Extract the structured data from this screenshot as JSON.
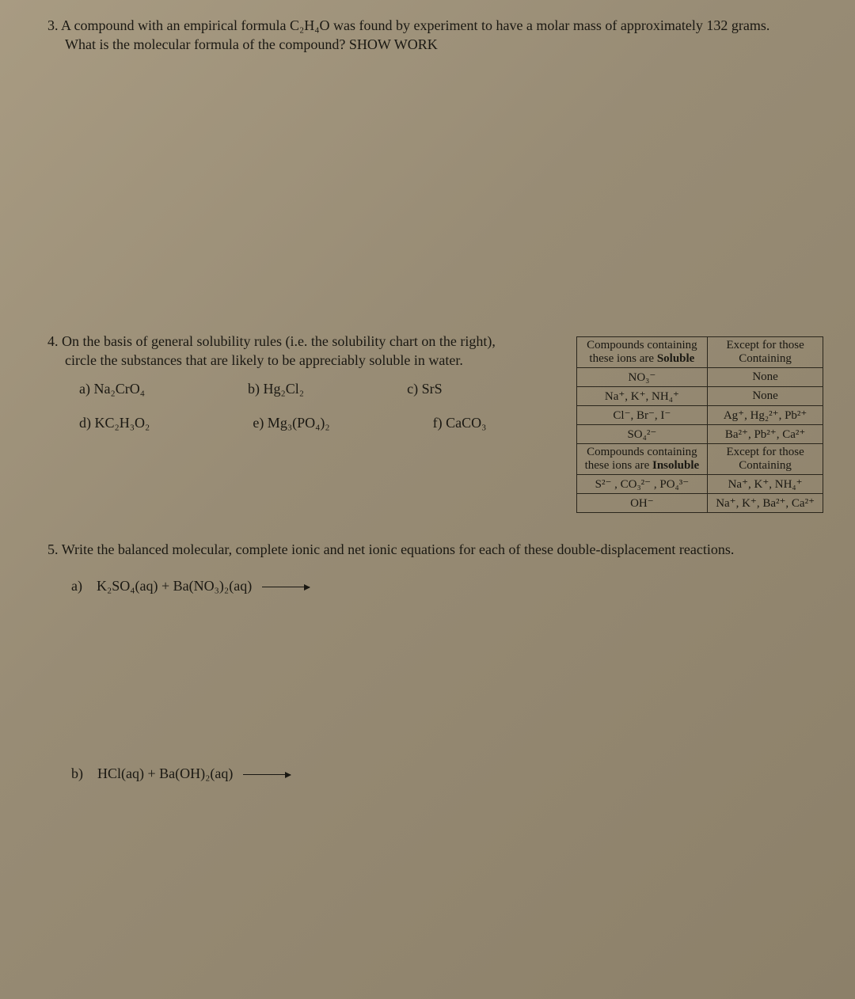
{
  "page": {
    "background_gradient": [
      "#a89b82",
      "#988c75",
      "#8c8069"
    ],
    "text_color": "#1a1812",
    "font_family": "Times New Roman",
    "base_font_size_pt": 13
  },
  "q3": {
    "number": "3.",
    "text_line1": "A compound with an empirical formula C₂H₄O was found by experiment to have a molar mass of approximately 132 grams.",
    "text_line2": "What is the molecular formula of the compound? SHOW WORK"
  },
  "q4": {
    "number": "4.",
    "text_line1": "On the basis of general solubility rules (i.e. the solubility chart on the right),",
    "text_line2": "circle the substances that are likely to be appreciably soluble in water.",
    "options_row1": {
      "a": "a) Na₂CrO₄",
      "b": "b) Hg₂Cl₂",
      "c": "c) SrS"
    },
    "options_row2": {
      "d": "d) KC₂H₃O₂",
      "e": "e) Mg₃(PO₄)₂",
      "f": "f) CaCO₃"
    }
  },
  "sol_table": {
    "border_color": "#2a261c",
    "font_size_pt": 11,
    "rows": [
      [
        "Compounds containing\nthese ions are Soluble",
        "Except for those\nContaining"
      ],
      [
        "NO₃⁻",
        "None"
      ],
      [
        "Na⁺, K⁺, NH₄⁺",
        "None"
      ],
      [
        "Cl⁻, Br⁻, I⁻",
        "Ag⁺, Hg₂²⁺, Pb²⁺"
      ],
      [
        "SO₄²⁻",
        "Ba²⁺, Pb²⁺, Ca²⁺"
      ],
      [
        "Compounds containing\nthese ions are Insoluble",
        "Except for those\nContaining"
      ],
      [
        "S²⁻ , CO₃²⁻ , PO₄³⁻",
        "Na⁺, K⁺, NH₄⁺"
      ],
      [
        "OH⁻",
        "Na⁺, K⁺, Ba²⁺, Ca²⁺"
      ]
    ]
  },
  "q5": {
    "number": "5.",
    "text": "Write the balanced molecular, complete ionic and net ionic equations for each of these double-displacement reactions.",
    "part_a_label": "a)",
    "part_a_eqn": "K₂SO₄(aq)  +  Ba(NO₃)₂(aq)",
    "part_b_label": "b)",
    "part_b_eqn": "HCl(aq)   +   Ba(OH)₂(aq)"
  }
}
